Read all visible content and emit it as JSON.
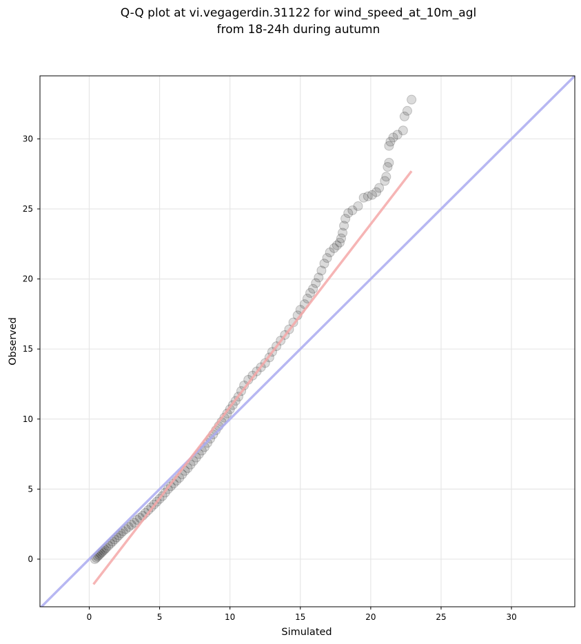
{
  "chart_data": {
    "type": "scatter",
    "title_line1": "Q-Q plot at vi.vegagerdin.31122 for wind_speed_at_10m_agl",
    "title_line2": "from 18-24h during autumn",
    "xlabel": "Simulated",
    "ylabel": "Observed",
    "xlim": [
      -3.5,
      34.5
    ],
    "ylim": [
      -3.4,
      34.5
    ],
    "xticks": [
      0,
      5,
      10,
      15,
      20,
      25,
      30
    ],
    "yticks": [
      0,
      5,
      10,
      15,
      20,
      25,
      30
    ],
    "grid": true,
    "marker_color": "#000000",
    "identity_line": {
      "name": "1:1 line",
      "color": "#aaaaf0",
      "from": [
        -3.5,
        -3.5
      ],
      "to": [
        34.5,
        34.5
      ]
    },
    "fit_line": {
      "name": "fit line",
      "color": "#f5a8a8",
      "from": [
        0.3,
        -1.8
      ],
      "to": [
        22.9,
        27.7
      ]
    },
    "points": [
      [
        0.4,
        0.0
      ],
      [
        0.5,
        0.1
      ],
      [
        0.6,
        0.2
      ],
      [
        0.7,
        0.3
      ],
      [
        0.8,
        0.4
      ],
      [
        0.9,
        0.5
      ],
      [
        1.0,
        0.6
      ],
      [
        1.1,
        0.7
      ],
      [
        1.2,
        0.8
      ],
      [
        1.35,
        0.95
      ],
      [
        1.5,
        1.1
      ],
      [
        1.65,
        1.25
      ],
      [
        1.8,
        1.4
      ],
      [
        1.95,
        1.55
      ],
      [
        2.1,
        1.7
      ],
      [
        2.25,
        1.85
      ],
      [
        2.4,
        2.0
      ],
      [
        2.6,
        2.15
      ],
      [
        2.8,
        2.3
      ],
      [
        3.0,
        2.45
      ],
      [
        3.2,
        2.6
      ],
      [
        3.4,
        2.8
      ],
      [
        3.6,
        2.95
      ],
      [
        3.8,
        3.1
      ],
      [
        4.0,
        3.3
      ],
      [
        4.2,
        3.5
      ],
      [
        4.4,
        3.7
      ],
      [
        4.6,
        3.9
      ],
      [
        4.8,
        4.1
      ],
      [
        5.0,
        4.3
      ],
      [
        5.2,
        4.5
      ],
      [
        5.4,
        4.75
      ],
      [
        5.6,
        5.0
      ],
      [
        5.8,
        5.2
      ],
      [
        6.0,
        5.4
      ],
      [
        6.2,
        5.6
      ],
      [
        6.4,
        5.8
      ],
      [
        6.6,
        6.05
      ],
      [
        6.8,
        6.3
      ],
      [
        7.0,
        6.5
      ],
      [
        7.2,
        6.75
      ],
      [
        7.4,
        7.0
      ],
      [
        7.6,
        7.25
      ],
      [
        7.8,
        7.5
      ],
      [
        8.0,
        7.75
      ],
      [
        8.2,
        8.0
      ],
      [
        8.4,
        8.3
      ],
      [
        8.6,
        8.6
      ],
      [
        8.8,
        8.9
      ],
      [
        9.0,
        9.2
      ],
      [
        9.2,
        9.5
      ],
      [
        9.4,
        9.8
      ],
      [
        9.6,
        10.1
      ],
      [
        9.8,
        10.4
      ],
      [
        10.0,
        10.7
      ],
      [
        10.2,
        11.0
      ],
      [
        10.4,
        11.3
      ],
      [
        10.6,
        11.6
      ],
      [
        10.8,
        12.0
      ],
      [
        11.0,
        12.4
      ],
      [
        11.3,
        12.8
      ],
      [
        11.6,
        13.1
      ],
      [
        11.9,
        13.4
      ],
      [
        12.2,
        13.7
      ],
      [
        12.5,
        14.0
      ],
      [
        12.8,
        14.4
      ],
      [
        13.0,
        14.8
      ],
      [
        13.3,
        15.2
      ],
      [
        13.6,
        15.6
      ],
      [
        13.9,
        16.0
      ],
      [
        14.2,
        16.4
      ],
      [
        14.5,
        16.9
      ],
      [
        14.8,
        17.4
      ],
      [
        15.0,
        17.8
      ],
      [
        15.3,
        18.2
      ],
      [
        15.5,
        18.6
      ],
      [
        15.7,
        19.0
      ],
      [
        15.9,
        19.3
      ],
      [
        16.1,
        19.7
      ],
      [
        16.3,
        20.1
      ],
      [
        16.5,
        20.6
      ],
      [
        16.7,
        21.1
      ],
      [
        16.9,
        21.5
      ],
      [
        17.1,
        21.9
      ],
      [
        17.4,
        22.2
      ],
      [
        17.6,
        22.4
      ],
      [
        17.8,
        22.6
      ],
      [
        17.9,
        22.9
      ],
      [
        18.0,
        23.3
      ],
      [
        18.1,
        23.8
      ],
      [
        18.2,
        24.3
      ],
      [
        18.4,
        24.7
      ],
      [
        18.7,
        24.9
      ],
      [
        19.1,
        25.2
      ],
      [
        19.5,
        25.8
      ],
      [
        19.8,
        25.9
      ],
      [
        20.1,
        26.0
      ],
      [
        20.4,
        26.2
      ],
      [
        20.6,
        26.5
      ],
      [
        21.0,
        27.0
      ],
      [
        21.1,
        27.3
      ],
      [
        21.2,
        28.0
      ],
      [
        21.3,
        28.3
      ],
      [
        21.3,
        29.5
      ],
      [
        21.4,
        29.8
      ],
      [
        21.6,
        30.1
      ],
      [
        21.9,
        30.3
      ],
      [
        22.3,
        30.6
      ],
      [
        22.4,
        31.6
      ],
      [
        22.6,
        32.0
      ],
      [
        22.9,
        32.8
      ]
    ]
  }
}
